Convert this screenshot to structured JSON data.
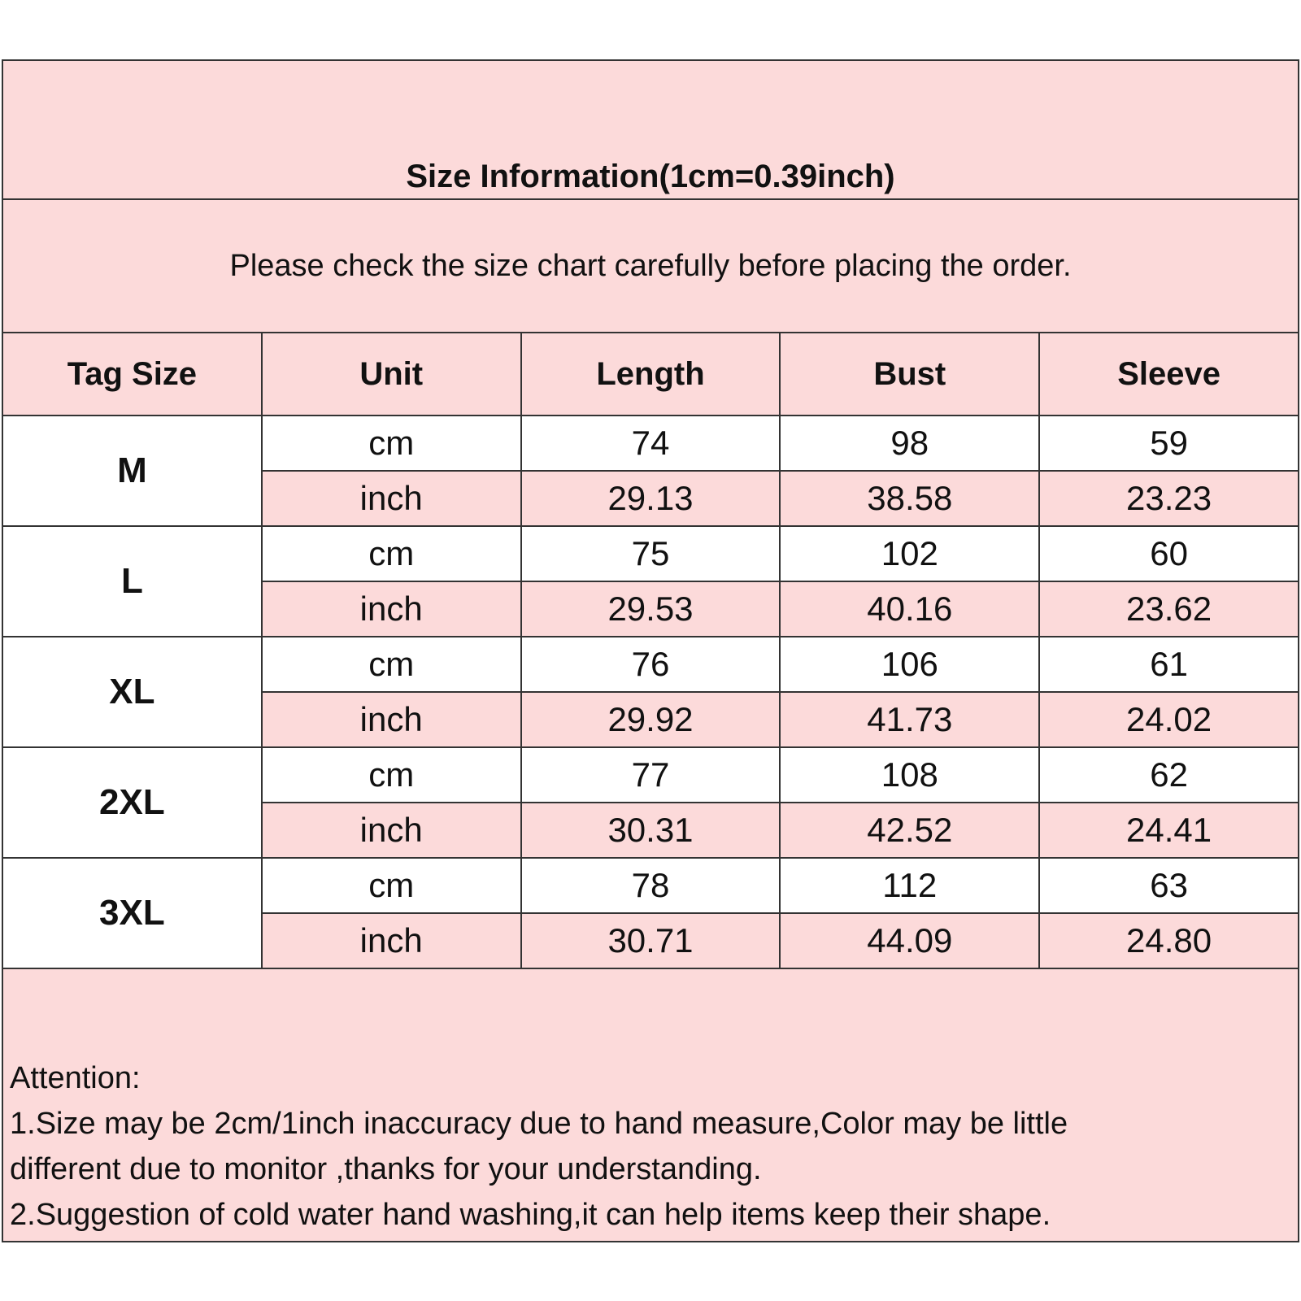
{
  "header": {
    "title": "Size Information(1cm=0.39inch)",
    "subtitle": "Please check the size chart carefully before placing the order."
  },
  "table": {
    "columns": [
      "Tag Size",
      "Unit",
      "Length",
      "Bust",
      "Sleeve"
    ],
    "groups": [
      {
        "size": "M",
        "rows": [
          [
            "cm",
            "74",
            "98",
            "59"
          ],
          [
            "inch",
            "29.13",
            "38.58",
            "23.23"
          ]
        ]
      },
      {
        "size": "L",
        "rows": [
          [
            "cm",
            "75",
            "102",
            "60"
          ],
          [
            "inch",
            "29.53",
            "40.16",
            "23.62"
          ]
        ]
      },
      {
        "size": "XL",
        "rows": [
          [
            "cm",
            "76",
            "106",
            "61"
          ],
          [
            "inch",
            "29.92",
            "41.73",
            "24.02"
          ]
        ]
      },
      {
        "size": "2XL",
        "rows": [
          [
            "cm",
            "77",
            "108",
            "62"
          ],
          [
            "inch",
            "30.31",
            "42.52",
            "24.41"
          ]
        ]
      },
      {
        "size": "3XL",
        "rows": [
          [
            "cm",
            "78",
            "112",
            "63"
          ],
          [
            "inch",
            "30.71",
            "44.09",
            "24.80"
          ]
        ]
      }
    ]
  },
  "notes": {
    "heading": "Attention:",
    "lines": [
      "1.Size may be 2cm/1inch inaccuracy due to hand measure,Color may be little",
      "different due to monitor ,thanks for your understanding.",
      "2.Suggestion of cold water hand washing,it can help items keep their shape."
    ]
  }
}
